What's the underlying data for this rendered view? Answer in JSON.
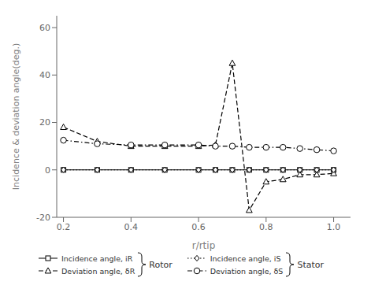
{
  "chart_data": {
    "type": "line",
    "x": [
      0.2,
      0.3,
      0.4,
      0.5,
      0.6,
      0.65,
      0.7,
      0.75,
      0.8,
      0.85,
      0.9,
      0.95,
      1.0
    ],
    "series": [
      {
        "name": "Incidence angle, iR",
        "color": "black",
        "marker": "square",
        "line_style": "solid",
        "values": [
          0.0,
          0.0,
          0.0,
          0.0,
          0.0,
          0.0,
          0.0,
          0.0,
          0.0,
          0.0,
          0.0,
          0.0,
          0.0
        ]
      },
      {
        "name": "Deviation angle, δR",
        "color": "black",
        "marker": "triangle",
        "line_style": "dashed",
        "values": [
          18.0,
          12.0,
          10.0,
          10.0,
          10.0,
          10.5,
          45.0,
          -17.0,
          -5.0,
          -4.0,
          -2.0,
          -2.0,
          -1.5
        ]
      },
      {
        "name": "Incidence angle, iS",
        "color": "black",
        "marker": "diamond",
        "line_style": "dotted",
        "values": [
          0.0,
          0.0,
          0.0,
          0.0,
          0.0,
          0.0,
          0.0,
          0.0,
          0.0,
          0.0,
          0.0,
          0.0,
          0.0
        ]
      },
      {
        "name": "Deviation angle, δS",
        "color": "black",
        "marker": "circle",
        "line_style": "dashdot",
        "values": [
          12.5,
          11.0,
          10.5,
          10.5,
          10.5,
          10.0,
          10.0,
          9.5,
          9.5,
          9.5,
          9.0,
          8.5,
          8.0
        ]
      }
    ],
    "x_label": "r/rtip",
    "y_label": "Incidence & deviation angle(deg.)",
    "xlim": [
      0.18,
      1.05
    ],
    "ylim": [
      -20,
      65
    ],
    "xticks": [
      0.2,
      0.4,
      0.6,
      0.8,
      {
        "value": 1.0,
        "label": "1.0"
      }
    ],
    "yticks": [
      -20,
      0,
      20,
      40,
      60
    ],
    "grid": false,
    "legend": "bottom",
    "annotations": [
      "Rotor",
      "Stator"
    ]
  }
}
